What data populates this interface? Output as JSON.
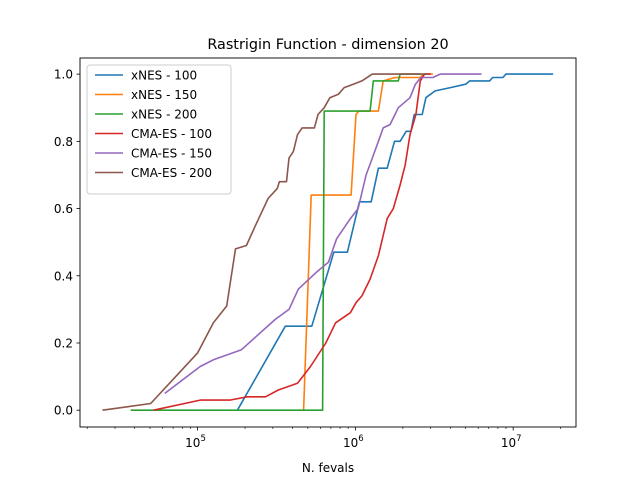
{
  "chart_data": {
    "type": "line",
    "title": "Rastrigin Function - dimension 20",
    "xlabel": "N. fevals",
    "ylabel": "",
    "xscale": "log",
    "xlim": [
      18000,
      25000000
    ],
    "ylim": [
      -0.05,
      1.048
    ],
    "x_ticks": [
      {
        "value": 100000,
        "base": "10",
        "exp": "5"
      },
      {
        "value": 1000000,
        "base": "10",
        "exp": "6"
      },
      {
        "value": 10000000,
        "base": "10",
        "exp": "7"
      }
    ],
    "y_ticks": [
      {
        "value": 0.0,
        "label": "0.0"
      },
      {
        "value": 0.2,
        "label": "0.2"
      },
      {
        "value": 0.4,
        "label": "0.4"
      },
      {
        "value": 0.6,
        "label": "0.6"
      },
      {
        "value": 0.8,
        "label": "0.8"
      },
      {
        "value": 1.0,
        "label": "1.0"
      }
    ],
    "legend_position": "top-left",
    "grid": false,
    "series": [
      {
        "name": "xNES - 100",
        "color": "#1f77b4",
        "x": [
          179000,
          360000,
          530000,
          730000,
          890000,
          1060000,
          1260000,
          1400000,
          1590000,
          1770000,
          1920000,
          2100000,
          2250000,
          2360000,
          2650000,
          2800000,
          3200000,
          4000000,
          5000000,
          5300000,
          7100000,
          7400000,
          8600000,
          9000000,
          17900000
        ],
        "y": [
          0,
          0.25,
          0.25,
          0.47,
          0.47,
          0.62,
          0.62,
          0.72,
          0.72,
          0.8,
          0.8,
          0.83,
          0.83,
          0.88,
          0.88,
          0.93,
          0.95,
          0.96,
          0.97,
          0.98,
          0.98,
          0.99,
          0.99,
          1.0,
          1.0
        ]
      },
      {
        "name": "xNES - 150",
        "color": "#ff7f0e",
        "x": [
          470000,
          525000,
          940000,
          1010000,
          1050000,
          1400000,
          1500000,
          1780000,
          2580000,
          2700000,
          3100000
        ],
        "y": [
          0,
          0.64,
          0.64,
          0.88,
          0.89,
          0.89,
          0.98,
          0.99,
          0.99,
          1.0,
          1.0
        ]
      },
      {
        "name": "xNES - 200",
        "color": "#2ca02c",
        "x": [
          37700,
          620000,
          635000,
          1240000,
          1300000,
          1870000,
          1920000,
          2580000
        ],
        "y": [
          0,
          0,
          0.89,
          0.89,
          0.98,
          0.98,
          1.0,
          1.0
        ]
      },
      {
        "name": "CMA-ES - 100",
        "color": "#d62728",
        "x": [
          52600,
          104000,
          160000,
          207000,
          270000,
          325000,
          430000,
          520000,
          650000,
          750000,
          930000,
          1010000,
          1100000,
          1240000,
          1400000,
          1590000,
          1740000,
          1920000,
          2070000,
          2220000,
          2420000,
          2580000,
          2740000,
          3000000
        ],
        "y": [
          0,
          0.03,
          0.03,
          0.04,
          0.04,
          0.06,
          0.08,
          0.13,
          0.2,
          0.26,
          0.29,
          0.32,
          0.34,
          0.39,
          0.46,
          0.57,
          0.6,
          0.67,
          0.73,
          0.82,
          0.88,
          0.98,
          1.0,
          1.0
        ]
      },
      {
        "name": "CMA-ES - 150",
        "color": "#9467bd",
        "x": [
          62000,
          104000,
          126000,
          190000,
          310000,
          380000,
          435000,
          565000,
          675000,
          760000,
          930000,
          1040000,
          1170000,
          1280000,
          1400000,
          1500000,
          1660000,
          1870000,
          2220000,
          2400000,
          2600000,
          3100000,
          3450000,
          6300000
        ],
        "y": [
          0.05,
          0.13,
          0.15,
          0.18,
          0.27,
          0.3,
          0.36,
          0.41,
          0.44,
          0.51,
          0.57,
          0.6,
          0.7,
          0.75,
          0.8,
          0.84,
          0.85,
          0.9,
          0.93,
          0.97,
          0.99,
          0.99,
          1.0,
          1.0
        ]
      },
      {
        "name": "CMA-ES - 200",
        "color": "#8c564b",
        "x": [
          25000,
          50500,
          100000,
          126000,
          153000,
          174000,
          204000,
          233000,
          280000,
          320000,
          330000,
          366000,
          380000,
          405000,
          430000,
          460000,
          550000,
          580000,
          635000,
          690000,
          780000,
          850000,
          970000,
          1100000,
          1280000,
          2900000
        ],
        "y": [
          0,
          0.02,
          0.17,
          0.26,
          0.31,
          0.48,
          0.49,
          0.55,
          0.63,
          0.66,
          0.68,
          0.68,
          0.75,
          0.77,
          0.82,
          0.84,
          0.84,
          0.88,
          0.9,
          0.93,
          0.94,
          0.96,
          0.97,
          0.98,
          1.0,
          1.0
        ]
      }
    ]
  }
}
